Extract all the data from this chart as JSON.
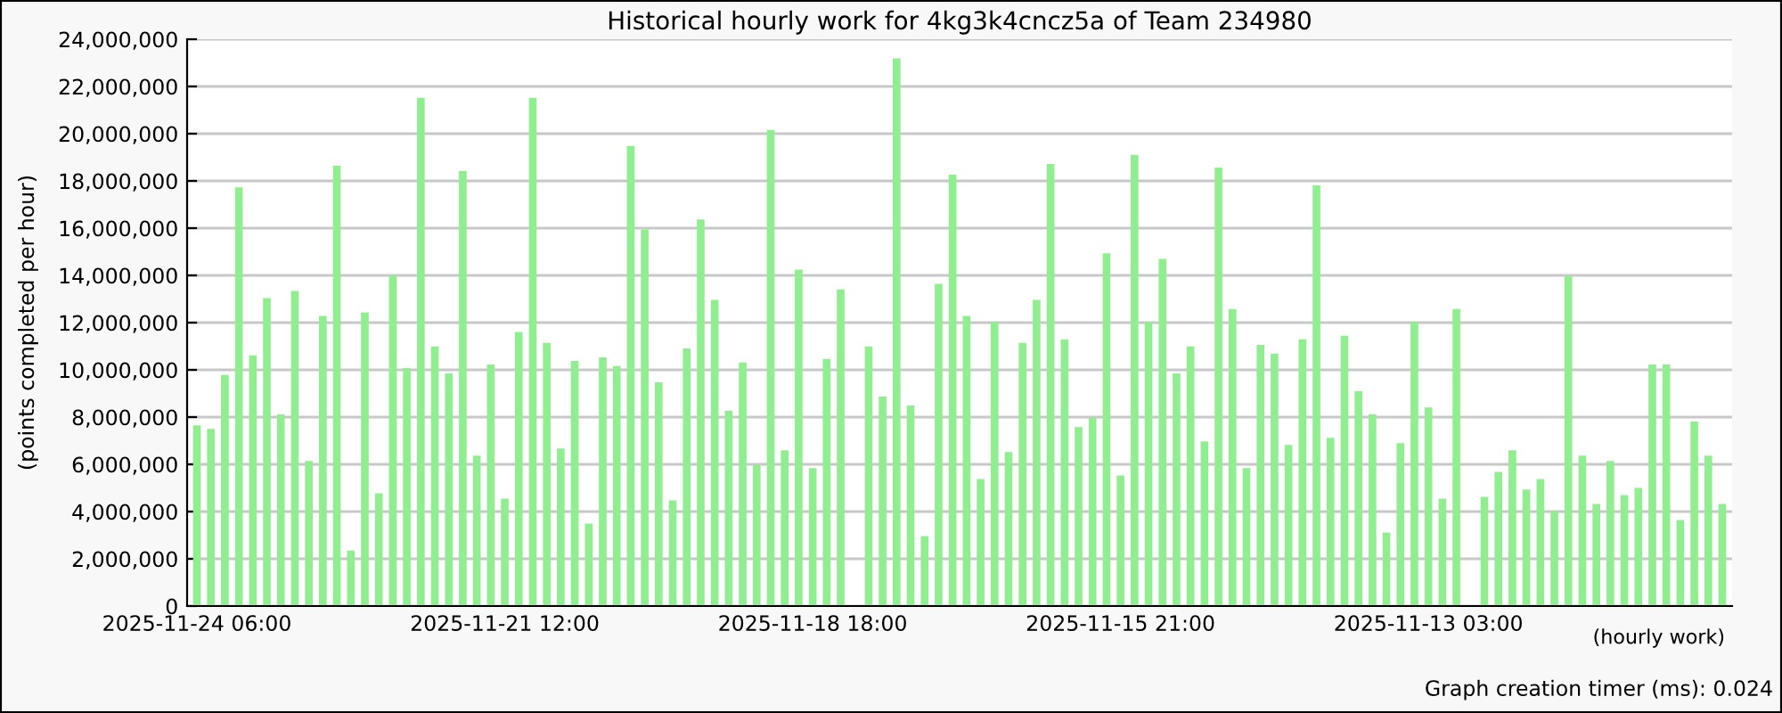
{
  "chart_data": {
    "type": "bar",
    "title": "Historical hourly work for 4kg3k4cncz5a of Team 234980",
    "xlabel": "(hourly work)",
    "ylabel": "(points completed per hour)",
    "annotations": [
      "Graph creation timer (ms): 0.024"
    ],
    "categories": [
      "2025-11-24 06:00",
      null,
      null,
      null,
      null,
      null,
      null,
      null,
      null,
      null,
      null,
      null,
      null,
      null,
      null,
      null,
      null,
      null,
      null,
      null,
      null,
      null,
      "2025-11-21 12:00",
      null,
      null,
      null,
      null,
      null,
      null,
      null,
      null,
      null,
      null,
      null,
      null,
      null,
      null,
      null,
      null,
      null,
      null,
      null,
      null,
      null,
      "2025-11-18 18:00",
      null,
      null,
      null,
      null,
      null,
      null,
      null,
      null,
      null,
      null,
      null,
      null,
      null,
      null,
      null,
      null,
      null,
      null,
      null,
      null,
      null,
      "2025-11-15 21:00",
      null,
      null,
      null,
      null,
      null,
      null,
      null,
      null,
      null,
      null,
      null,
      null,
      null,
      null,
      null,
      null,
      null,
      null,
      null,
      null,
      null,
      "2025-11-13 03:00",
      null,
      null,
      null,
      null,
      null,
      null,
      null,
      null,
      null,
      null,
      null,
      null,
      null,
      null,
      null,
      null,
      null,
      null,
      null,
      null,
      null
    ],
    "values": [
      7650000,
      7500000,
      9780000,
      17730000,
      10610000,
      13040000,
      8110000,
      13340000,
      6140000,
      12280000,
      18640000,
      2350000,
      12430000,
      4770000,
      14000000,
      10080000,
      21520000,
      10990000,
      9850000,
      18420000,
      6370000,
      10230000,
      4550000,
      11600000,
      21520000,
      11140000,
      6670000,
      10380000,
      3490000,
      10530000,
      10160000,
      19480000,
      15940000,
      9470000,
      4470000,
      10910000,
      16370000,
      12960000,
      8260000,
      10310000,
      5960000,
      20160000,
      6590000,
      14250000,
      5840000,
      10460000,
      13410000,
      null,
      10990000,
      8870000,
      23190000,
      8490000,
      2960000,
      13640000,
      18260000,
      12280000,
      5380000,
      12030000,
      6520000,
      11140000,
      12960000,
      18720000,
      11290000,
      7580000,
      7960000,
      14930000,
      5530000,
      19100000,
      12030000,
      14700000,
      9850000,
      10990000,
      6970000,
      18570000,
      12580000,
      5840000,
      11060000,
      10690000,
      6820000,
      11290000,
      17810000,
      7120000,
      11440000,
      9090000,
      8110000,
      3110000,
      6900000,
      12030000,
      8410000,
      4550000,
      12580000,
      null,
      4620000,
      5680000,
      6590000,
      4930000,
      5380000,
      4020000,
      13970000,
      6370000,
      4320000,
      6140000,
      4700000,
      5000000,
      10230000,
      10230000,
      3640000,
      7810000,
      6370000,
      4320000
    ],
    "color": "#90ee90",
    "ylim": [
      0,
      24000000
    ],
    "yticks": [
      0,
      {
        "value": 2000000,
        "label": "2,000,000"
      },
      {
        "value": 4000000,
        "label": "4,000,000"
      },
      {
        "value": 6000000,
        "label": "6,000,000"
      },
      {
        "value": 8000000,
        "label": "8,000,000"
      },
      {
        "value": 10000000,
        "label": "10,000,000"
      },
      {
        "value": 12000000,
        "label": "12,000,000"
      },
      {
        "value": 14000000,
        "label": "14,000,000"
      },
      {
        "value": 16000000,
        "label": "16,000,000"
      },
      {
        "value": 18000000,
        "label": "18,000,000"
      },
      {
        "value": 20000000,
        "label": "20,000,000"
      },
      {
        "value": 22000000,
        "label": "22,000,000"
      },
      {
        "value": 24000000,
        "label": "24,000,000"
      }
    ],
    "grid": "y"
  }
}
